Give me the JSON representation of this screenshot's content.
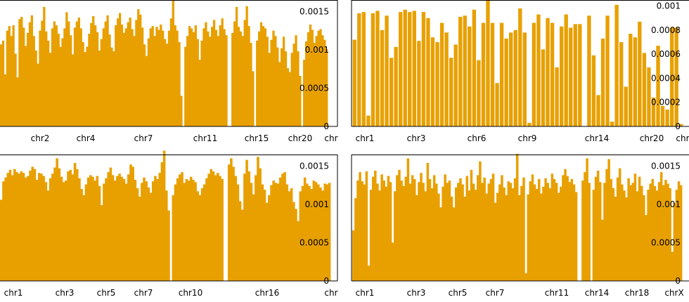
{
  "chart_data": [
    {
      "type": "area",
      "x_ticks": [
        "chr2",
        "chr4",
        "chr7",
        "chr11",
        "chr15",
        "chr20",
        "chr"
      ],
      "y_ticks": [
        "0",
        "0.0005",
        "0.001",
        "0.0015"
      ],
      "ylim": [
        0,
        0.00165
      ],
      "y_axis_side": "right",
      "grid": false,
      "series": [
        {
          "values": [
            0.00107,
            0.00112,
            0.00068,
            0.00125,
            0.00131,
            0.00118,
            0.00132,
            0.00095,
            0.00064,
            0.0014,
            0.00143,
            0.00129,
            0.00105,
            0.00122,
            0.00136,
            0.00145,
            0.00118,
            0.00099,
            0.00082,
            0.00125,
            0.00138,
            0.00156,
            0.00124,
            0.00112,
            0.00096,
            0.00128,
            0.00137,
            0.00132,
            0.00121,
            0.00104,
            0.00115,
            0.00128,
            0.00149,
            0.00137,
            0.00119,
            0.00094,
            0.00129,
            0.00137,
            0.00142,
            0.00128,
            0.0011,
            0.00097,
            0.00104,
            0.00121,
            0.00135,
            0.00144,
            0.00132,
            0.00123,
            0.00099,
            0.00114,
            0.00128,
            0.00137,
            0.00145,
            0.0012,
            0.00103,
            0.00098,
            0.00132,
            0.00141,
            0.00148,
            0.00133,
            0.00122,
            0.00128,
            0.00136,
            0.00142,
            0.00127,
            0.00118,
            0.00139,
            0.00153,
            0.00146,
            0.00129,
            0.00107,
            0.00092,
            0.00115,
            0.00128,
            0.00131,
            0.00118,
            0.0013,
            0.00126,
            0.00133,
            0.00125,
            0.00114,
            0.00108,
            0.00125,
            0.00141,
            0.00166,
            0.00132,
            0.00125,
            0.0011,
            0.0004,
            0.0,
            0.00104,
            0.00118,
            0.00131,
            0.00128,
            0.00123,
            0.00132,
            0.00114,
            0.00087,
            0.00112,
            0.00128,
            0.00136,
            0.00124,
            0.00117,
            0.0013,
            0.00139,
            0.00126,
            0.00118,
            0.00132,
            0.00141,
            0.00127,
            0.00119,
            0.0,
            0.0,
            0.00122,
            0.00137,
            0.00156,
            0.0013,
            0.00124,
            0.00118,
            0.00139,
            0.00157,
            0.00131,
            0.00109,
            0.00072,
            0.0,
            0.00112,
            0.00124,
            0.00136,
            0.00131,
            0.00128,
            0.00117,
            0.00096,
            0.00113,
            0.00125,
            0.00118,
            0.00103,
            0.00084,
            0.00102,
            0.00117,
            0.00098,
            0.00076,
            0.00071,
            0.00096,
            0.00108,
            0.00119,
            0.00098,
            0.00066,
            0.0,
            0.00087,
            0.00111,
            0.00123,
            0.00133,
            0.00126,
            0.00109,
            0.00118,
            0.00125,
            0.00127,
            0.00119,
            0.00113,
            0.00101
          ]
        }
      ]
    },
    {
      "type": "bar",
      "x_ticks": [
        "chr1",
        "chr3",
        "chr6",
        "chr9",
        "chr14",
        "chr20",
        "chr"
      ],
      "y_ticks": [
        "0",
        "0.0002",
        "0.0004",
        "0.0006",
        "0.0008",
        "0.001"
      ],
      "ylim": [
        0,
        0.00105
      ],
      "y_axis_side": "right",
      "grid": false,
      "series": [
        {
          "values": [
            0.00072,
            0.00094,
            0.00095,
            9e-05,
            0.00094,
            0.00096,
            0.0008,
            0.00092,
            0.00057,
            0.00066,
            0.00095,
            0.00097,
            0.00095,
            0.00096,
            0.00071,
            0.00095,
            0.0009,
            0.00074,
            0.0007,
            0.00086,
            0.00078,
            0.00057,
            0.00068,
            0.00091,
            0.00092,
            0.00083,
            0.00097,
            0.00055,
            0.00086,
            0.00105,
            0.00086,
            0.00036,
            0.00086,
            0.00073,
            0.00078,
            0.0008,
            0.00098,
            0.00078,
            3e-05,
            0.00086,
            0.00093,
            0.00064,
            0.0009,
            0.00086,
            0.00049,
            0.00083,
            0.00093,
            0.00082,
            0.00085,
            0.00085,
            0.0,
            0.00092,
            0.00059,
            0.00026,
            0.00073,
            0.00092,
            4e-05,
            0.00101,
            0.0007,
            0.00033,
            0.00077,
            0.00074,
            0.00087,
            0.00061,
            0.00049,
            0.00024,
            0.00067,
            0.00017,
            0.00014,
            0.00082,
            0.00082,
            2e-05
          ]
        }
      ]
    },
    {
      "type": "area",
      "x_ticks": [
        "chr1",
        "chr3",
        "chr5",
        "chr7",
        "chr10",
        "chr16",
        "chr"
      ],
      "y_ticks": [
        "0",
        "0.0005",
        "0.001",
        "0.0015"
      ],
      "ylim": [
        0,
        0.00165
      ],
      "y_axis_side": "right",
      "grid": false,
      "series": [
        {
          "values": [
            0.00106,
            0.0013,
            0.00135,
            0.00141,
            0.00145,
            0.00138,
            0.00146,
            0.00142,
            0.0014,
            0.00143,
            0.00141,
            0.00135,
            0.00137,
            0.00144,
            0.00149,
            0.00146,
            0.00132,
            0.00141,
            0.0014,
            0.00137,
            0.00129,
            0.00118,
            0.00134,
            0.0014,
            0.00148,
            0.0016,
            0.00147,
            0.00136,
            0.00129,
            0.00131,
            0.00143,
            0.00145,
            0.00139,
            0.00154,
            0.00146,
            0.00134,
            0.0012,
            0.00112,
            0.00126,
            0.00135,
            0.00138,
            0.00136,
            0.00131,
            0.00137,
            0.00124,
            0.00099,
            0.00127,
            0.00134,
            0.00142,
            0.00148,
            0.00138,
            0.00131,
            0.00137,
            0.0014,
            0.00136,
            0.00133,
            0.00127,
            0.00139,
            0.00152,
            0.00149,
            0.00132,
            0.00121,
            0.0011,
            0.00128,
            0.00135,
            0.0013,
            0.00122,
            0.00115,
            0.0013,
            0.00137,
            0.00133,
            0.00141,
            0.00155,
            0.0017,
            0.00118,
            0.00092,
            0.0,
            0.00112,
            0.00126,
            0.00134,
            0.00139,
            0.00142,
            0.00128,
            0.00133,
            0.00131,
            0.00136,
            0.00132,
            0.00129,
            0.00117,
            0.00112,
            0.00121,
            0.00126,
            0.00134,
            0.0014,
            0.00146,
            0.00143,
            0.00138,
            0.00141,
            0.00137,
            0.00133,
            0.0,
            0.0,
            0.00152,
            0.0016,
            0.00149,
            0.00137,
            0.00126,
            0.00104,
            0.00093,
            0.0014,
            0.00158,
            0.00143,
            0.00128,
            0.00113,
            0.00138,
            0.00162,
            0.00147,
            0.00126,
            0.00119,
            0.00102,
            0.00112,
            0.00125,
            0.00131,
            0.00128,
            0.00127,
            0.00135,
            0.0014,
            0.00142,
            0.00126,
            0.00117,
            0.00121,
            0.00103,
            0.00094,
            0.00078,
            0.00117,
            0.00124,
            0.00135,
            0.00127,
            0.00124,
            0.0012,
            0.00131,
            0.00129,
            0.00126,
            0.00122,
            0.00118,
            0.00127,
            0.00126,
            0.00128
          ]
        }
      ]
    },
    {
      "type": "area",
      "x_ticks": [
        "chr1",
        "chr3",
        "chr5",
        "chr7",
        "chr11",
        "chr14",
        "chr18",
        "chrX"
      ],
      "y_ticks": [
        "0",
        "0.0005",
        "0.001",
        "0.0015"
      ],
      "ylim": [
        0,
        0.00165
      ],
      "y_axis_side": "right",
      "grid": false,
      "series": [
        {
          "values": [
            0.00066,
            0.00108,
            0.00131,
            0.00142,
            0.0013,
            0.00126,
            0.00143,
            0.0002,
            0.00119,
            0.00136,
            0.00144,
            0.00127,
            0.00118,
            0.00139,
            0.00131,
            0.00123,
            0.00137,
            0.00129,
            0.0005,
            0.00117,
            0.00138,
            0.00145,
            0.00131,
            0.00124,
            0.00136,
            0.0016,
            0.00127,
            0.00138,
            0.00133,
            0.00112,
            0.00129,
            0.00141,
            0.00128,
            0.00117,
            0.00154,
            0.00133,
            0.00121,
            0.00138,
            0.00127,
            0.00114,
            0.00096,
            0.00123,
            0.00139,
            0.00128,
            0.00131,
            0.0011,
            0.00096,
            0.00122,
            0.00128,
            0.00134,
            0.00126,
            0.0011,
            0.00137,
            0.00118,
            0.00145,
            0.00127,
            0.00119,
            0.00138,
            0.00156,
            0.00128,
            0.00135,
            0.00114,
            0.00127,
            0.00133,
            0.0014,
            0.00102,
            0.00115,
            0.00126,
            0.00138,
            0.00122,
            0.00112,
            0.0013,
            0.00128,
            0.00121,
            0.00134,
            0.00166,
            0.00112,
            0.00124,
            0.00135,
            0.0001,
            0.00113,
            0.0013,
            0.00139,
            0.00126,
            0.0012,
            0.00133,
            0.00114,
            0.00123,
            0.00134,
            0.00128,
            0.00121,
            0.0014,
            0.00133,
            0.00128,
            0.00115,
            0.00123,
            0.00138,
            0.00146,
            0.00137,
            0.00129,
            0.00133,
            0.00126,
            0.00116,
            0.0,
            0.0,
            0.00131,
            0.00142,
            0.0016,
            0.00128,
            0.0,
            0.00119,
            0.00136,
            0.00144,
            0.00129,
            0.0008,
            0.00128,
            0.00146,
            0.00159,
            0.00133,
            0.00121,
            0.0011,
            0.00135,
            0.00147,
            0.00126,
            0.00118,
            0.00109,
            0.00134,
            0.00125,
            0.00128,
            0.0014,
            0.00117,
            0.00136,
            0.00124,
            0.00112,
            0.00086,
            0.00119,
            0.00127,
            0.00133,
            0.00124,
            0.00118,
            0.00129,
            0.00142,
            0.00125,
            0.00132,
            0.00127,
            0.00121,
            0.00038,
            0.00102,
            0.00119,
            0.0013,
            0.00125
          ]
        }
      ]
    }
  ],
  "colors": {
    "fill": "#e8a000",
    "axis": "#000000",
    "text": "#000000"
  }
}
